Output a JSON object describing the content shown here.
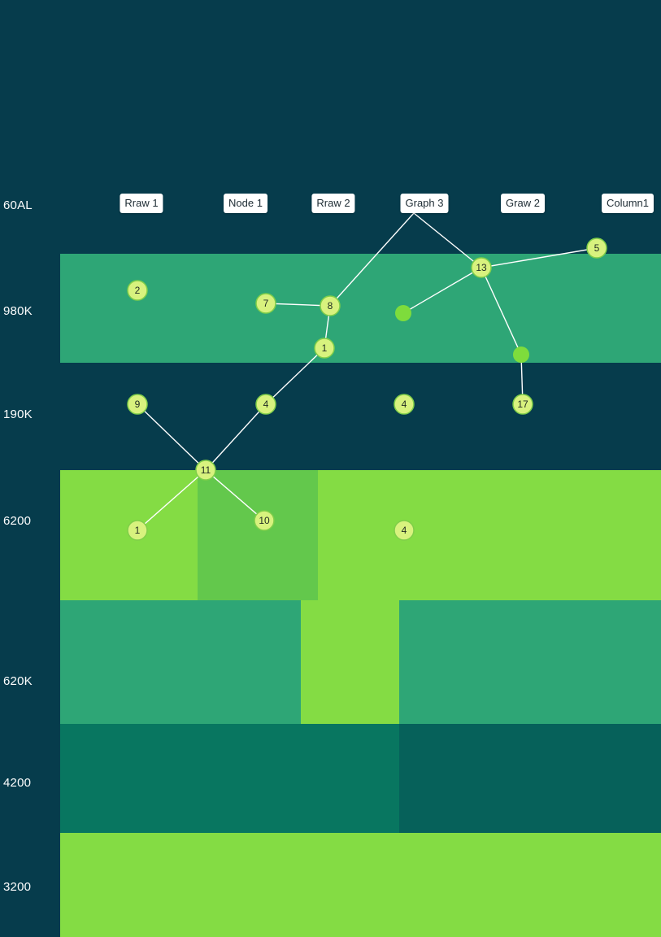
{
  "colors": {
    "background": "#063c4c",
    "band_teal": "#2ea676",
    "band_dark": "#063c4c",
    "band_lime": "#84dc44",
    "band_deep": "#087660",
    "band_deeper": "#06615a",
    "cell_highlight": "#63c84c",
    "node_fill": "#d8f27e",
    "node_stroke": "#7fce49",
    "node_solid": "#7edc3c",
    "edge": "#ffffff"
  },
  "row_labels": [
    "60AL",
    "980K",
    "190K",
    "6200",
    "620K",
    "4200",
    "3200"
  ],
  "column_labels": [
    "Rraw 1",
    "Node 1",
    "Rraw 2",
    "Graph 3",
    "Graw 2",
    "Column1"
  ],
  "nodes": [
    {
      "id": "n_top_graph3",
      "label": "",
      "kind": "anchor"
    },
    {
      "id": "n5",
      "label": "5",
      "kind": "labeled"
    },
    {
      "id": "n13",
      "label": "13",
      "kind": "labeled"
    },
    {
      "id": "n2",
      "label": "2",
      "kind": "labeled"
    },
    {
      "id": "n7",
      "label": "7",
      "kind": "labeled"
    },
    {
      "id": "n8",
      "label": "8",
      "kind": "labeled"
    },
    {
      "id": "n_solid_a",
      "label": "",
      "kind": "solid"
    },
    {
      "id": "n1a",
      "label": "1",
      "kind": "labeled"
    },
    {
      "id": "n_solid_b",
      "label": "",
      "kind": "solid"
    },
    {
      "id": "n9",
      "label": "9",
      "kind": "labeled"
    },
    {
      "id": "n4a",
      "label": "4",
      "kind": "labeled"
    },
    {
      "id": "n4b",
      "label": "4",
      "kind": "labeled"
    },
    {
      "id": "n17",
      "label": "17",
      "kind": "labeled"
    },
    {
      "id": "n11",
      "label": "11",
      "kind": "labeled"
    },
    {
      "id": "n1b",
      "label": "1",
      "kind": "labeled"
    },
    {
      "id": "n10",
      "label": "10",
      "kind": "labeled"
    },
    {
      "id": "n4c",
      "label": "4",
      "kind": "labeled"
    }
  ],
  "edges": [
    [
      "n_top_graph3",
      "n8"
    ],
    [
      "n_top_graph3",
      "n13"
    ],
    [
      "n13",
      "n5"
    ],
    [
      "n13",
      "n_solid_a"
    ],
    [
      "n13",
      "n_solid_b"
    ],
    [
      "n_solid_b",
      "n17"
    ],
    [
      "n7",
      "n8"
    ],
    [
      "n8",
      "n1a"
    ],
    [
      "n1a",
      "n4a"
    ],
    [
      "n4a",
      "n11"
    ],
    [
      "n9",
      "n11"
    ],
    [
      "n11",
      "n1b"
    ],
    [
      "n11",
      "n10"
    ]
  ]
}
